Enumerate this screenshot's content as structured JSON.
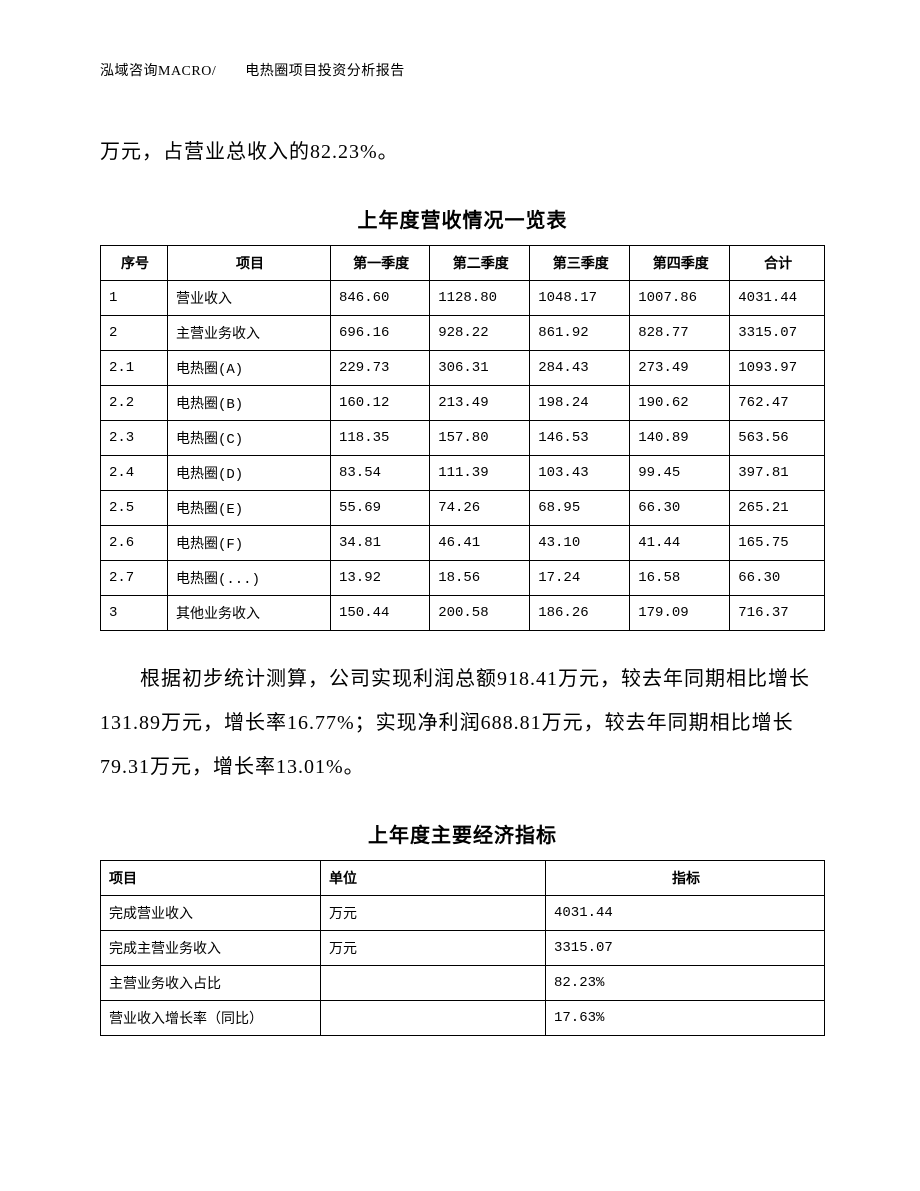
{
  "header": "泓域咨询MACRO/　　电热圈项目投资分析报告",
  "para1": "万元，占营业总收入的82.23%。",
  "table1": {
    "title": "上年度营收情况一览表",
    "columns": [
      "序号",
      "项目",
      "第一季度",
      "第二季度",
      "第三季度",
      "第四季度",
      "合计"
    ],
    "rows": [
      [
        "1",
        "营业收入",
        "846.60",
        "1128.80",
        "1048.17",
        "1007.86",
        "4031.44"
      ],
      [
        "2",
        "主营业务收入",
        "696.16",
        "928.22",
        "861.92",
        "828.77",
        "3315.07"
      ],
      [
        "2.1",
        "电热圈(A)",
        "229.73",
        "306.31",
        "284.43",
        "273.49",
        "1093.97"
      ],
      [
        "2.2",
        "电热圈(B)",
        "160.12",
        "213.49",
        "198.24",
        "190.62",
        "762.47"
      ],
      [
        "2.3",
        "电热圈(C)",
        "118.35",
        "157.80",
        "146.53",
        "140.89",
        "563.56"
      ],
      [
        "2.4",
        "电热圈(D)",
        "83.54",
        "111.39",
        "103.43",
        "99.45",
        "397.81"
      ],
      [
        "2.5",
        "电热圈(E)",
        "55.69",
        "74.26",
        "68.95",
        "66.30",
        "265.21"
      ],
      [
        "2.6",
        "电热圈(F)",
        "34.81",
        "46.41",
        "43.10",
        "41.44",
        "165.75"
      ],
      [
        "2.7",
        "电热圈(...)",
        "13.92",
        "18.56",
        "17.24",
        "16.58",
        "66.30"
      ],
      [
        "3",
        "其他业务收入",
        "150.44",
        "200.58",
        "186.26",
        "179.09",
        "716.37"
      ]
    ]
  },
  "para2": "根据初步统计测算，公司实现利润总额918.41万元，较去年同期相比增长131.89万元，增长率16.77%；实现净利润688.81万元，较去年同期相比增长79.31万元，增长率13.01%。",
  "table2": {
    "title": "上年度主要经济指标",
    "columns": [
      "项目",
      "单位",
      "指标"
    ],
    "rows": [
      [
        "完成营业收入",
        "万元",
        "4031.44"
      ],
      [
        "完成主营业务收入",
        "万元",
        "3315.07"
      ],
      [
        "主营业务收入占比",
        "",
        "82.23%"
      ],
      [
        "营业收入增长率（同比）",
        "",
        "17.63%"
      ]
    ]
  }
}
